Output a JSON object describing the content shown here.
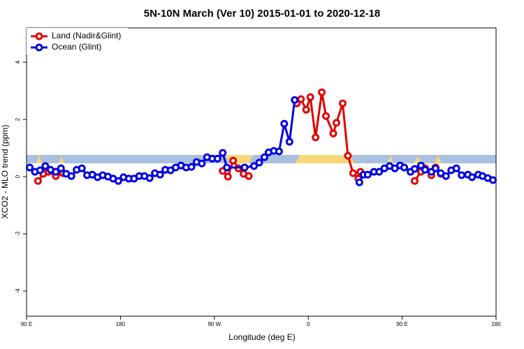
{
  "chart_data": {
    "type": "line",
    "title": "5N-10N March (Ver 10)   2015-01-01 to 2020-12-18",
    "x_label": "Longitude (deg E)",
    "y_label": "XCO2 - MLO trend (ppm)",
    "xlim": [
      90,
      540
    ],
    "ylim": [
      -4.88,
      5.2
    ],
    "xticks": [
      {
        "value": 90,
        "label": "90 E"
      },
      180,
      {
        "value": 270,
        "label": "90 W"
      },
      {
        "value": 360,
        "label": "0"
      },
      {
        "value": 450,
        "label": "90 E"
      },
      {
        "value": 540,
        "label": "180"
      }
    ],
    "yticks": [
      -4,
      -2,
      0,
      2,
      4
    ],
    "legend": "topleft",
    "series": [
      {
        "name": "Land (Nadir&Glint)",
        "color": "#e00000",
        "x": [
          101,
          106,
          111,
          118,
          125,
          null,
          278,
          283,
          288,
          293,
          298,
          303,
          null,
          349,
          353,
          358,
          362,
          367,
          373,
          377,
          384,
          387,
          393,
          398,
          403,
          408,
          410,
          null,
          462,
          468,
          472,
          478,
          482,
          487
        ],
        "values": [
          -0.15,
          0.1,
          0.17,
          0.02,
          0.12,
          null,
          0.2,
          0,
          0.56,
          0.29,
          0.1,
          0.02,
          null,
          2.56,
          2.71,
          2.34,
          2.78,
          1.37,
          2.95,
          2.12,
          1.51,
          1.88,
          2.56,
          0.73,
          0.12,
          -0.07,
          0.17,
          null,
          -0.15,
          0.17,
          0.29,
          0.05,
          0.32,
          0.1
        ]
      },
      {
        "name": "Ocean (Glint)",
        "color": "#0000e0",
        "x": [
          93,
          98,
          103,
          108,
          113,
          118,
          123,
          128,
          133,
          138,
          143,
          148,
          153,
          158,
          163,
          168,
          173,
          178,
          183,
          188,
          193,
          198,
          203,
          208,
          213,
          218,
          223,
          228,
          233,
          238,
          243,
          248,
          253,
          258,
          263,
          268,
          273,
          278,
          282,
          299,
          308,
          313,
          318,
          322,
          327,
          332,
          337,
          342,
          347,
          null,
          409,
          413,
          417,
          423,
          428,
          433,
          438,
          443,
          448,
          452,
          458,
          462,
          468,
          472,
          478,
          482,
          487,
          492,
          497,
          502,
          507,
          513,
          517,
          523,
          527,
          532,
          537
        ],
        "values": [
          0.32,
          0.17,
          0.22,
          0.37,
          0.24,
          0.17,
          0.29,
          0.1,
          0.02,
          0.24,
          0.29,
          0.05,
          0.07,
          -0.02,
          0.05,
          0,
          -0.07,
          -0.15,
          -0.02,
          -0.07,
          -0.07,
          0.02,
          0.02,
          -0.05,
          0.12,
          0.07,
          0.24,
          0.22,
          0.32,
          0.39,
          0.32,
          0.34,
          0.51,
          0.46,
          0.68,
          0.63,
          0.63,
          0.83,
          0.32,
          0.32,
          0.37,
          0.49,
          0.68,
          0.85,
          0.9,
          0.88,
          1.85,
          1.22,
          2.68,
          null,
          -0.2,
          0.07,
          0.07,
          0.17,
          0.17,
          0.29,
          0.37,
          0.29,
          0.39,
          0.32,
          0.17,
          0.27,
          0.39,
          0.24,
          0.17,
          0.29,
          0.12,
          0.02,
          0.22,
          0.29,
          0.05,
          0.07,
          -0.02,
          0.07,
          0.02,
          -0.05,
          -0.12
        ]
      }
    ]
  }
}
